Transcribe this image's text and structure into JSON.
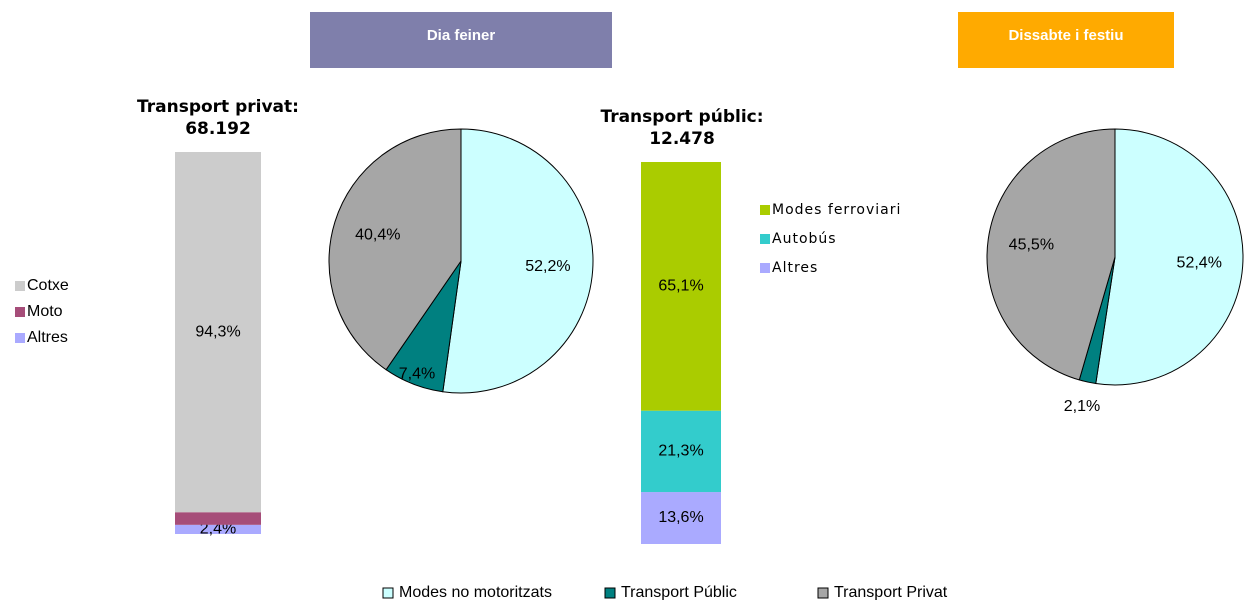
{
  "headers": [
    {
      "text": "Dia feiner",
      "color": "#7f7fab"
    },
    {
      "text": "Dissabte i festiu",
      "color": "#ffaa00"
    }
  ],
  "chart_data": [
    {
      "type": "stacked_bar",
      "title": "Transport privat:",
      "total": {
        "value": 68192,
        "label": "68.192"
      },
      "series": [
        {
          "name": "Cotxe",
          "color": "#cccccc",
          "values": [
            94.3
          ],
          "value_labels": [
            "94,3%"
          ]
        },
        {
          "name": "Moto",
          "color": "#a64d79",
          "values": [
            3.3
          ],
          "value_labels": [
            "3,3%"
          ]
        },
        {
          "name": "Altres",
          "color": "#aaaaff",
          "values": [
            2.4
          ],
          "value_labels": [
            "2,4%"
          ]
        }
      ]
    },
    {
      "type": "pie",
      "categories": [
        "Modes no motoritzats",
        "Transport Públic",
        "Transport Privat"
      ],
      "colors": [
        "#ccffff",
        "#008080",
        "#a6a6a6"
      ],
      "values": [
        52.2,
        7.4,
        40.4
      ],
      "value_labels": [
        "52,2%",
        "7,4%",
        "40,4%"
      ]
    },
    {
      "type": "stacked_bar",
      "title": "Transport públic:",
      "total": {
        "value": 12478,
        "label": "12.478"
      },
      "series": [
        {
          "name": "Modes  ferroviari",
          "color": "#aacc00",
          "values": [
            65.1
          ],
          "value_labels": [
            "65,1%"
          ]
        },
        {
          "name": "Autobús",
          "color": "#33cccc",
          "values": [
            21.3
          ],
          "value_labels": [
            "21,3%"
          ]
        },
        {
          "name": "Altres",
          "color": "#aaaaff",
          "values": [
            13.6
          ],
          "value_labels": [
            "13,6%"
          ]
        }
      ]
    },
    {
      "type": "pie",
      "colors": [
        "#ccffff",
        "#008080",
        "#a6a6a6"
      ],
      "values": [
        52.4,
        2.1,
        45.5
      ],
      "value_labels": [
        "52,4%",
        "2,1%",
        "45,5%"
      ]
    }
  ]
}
